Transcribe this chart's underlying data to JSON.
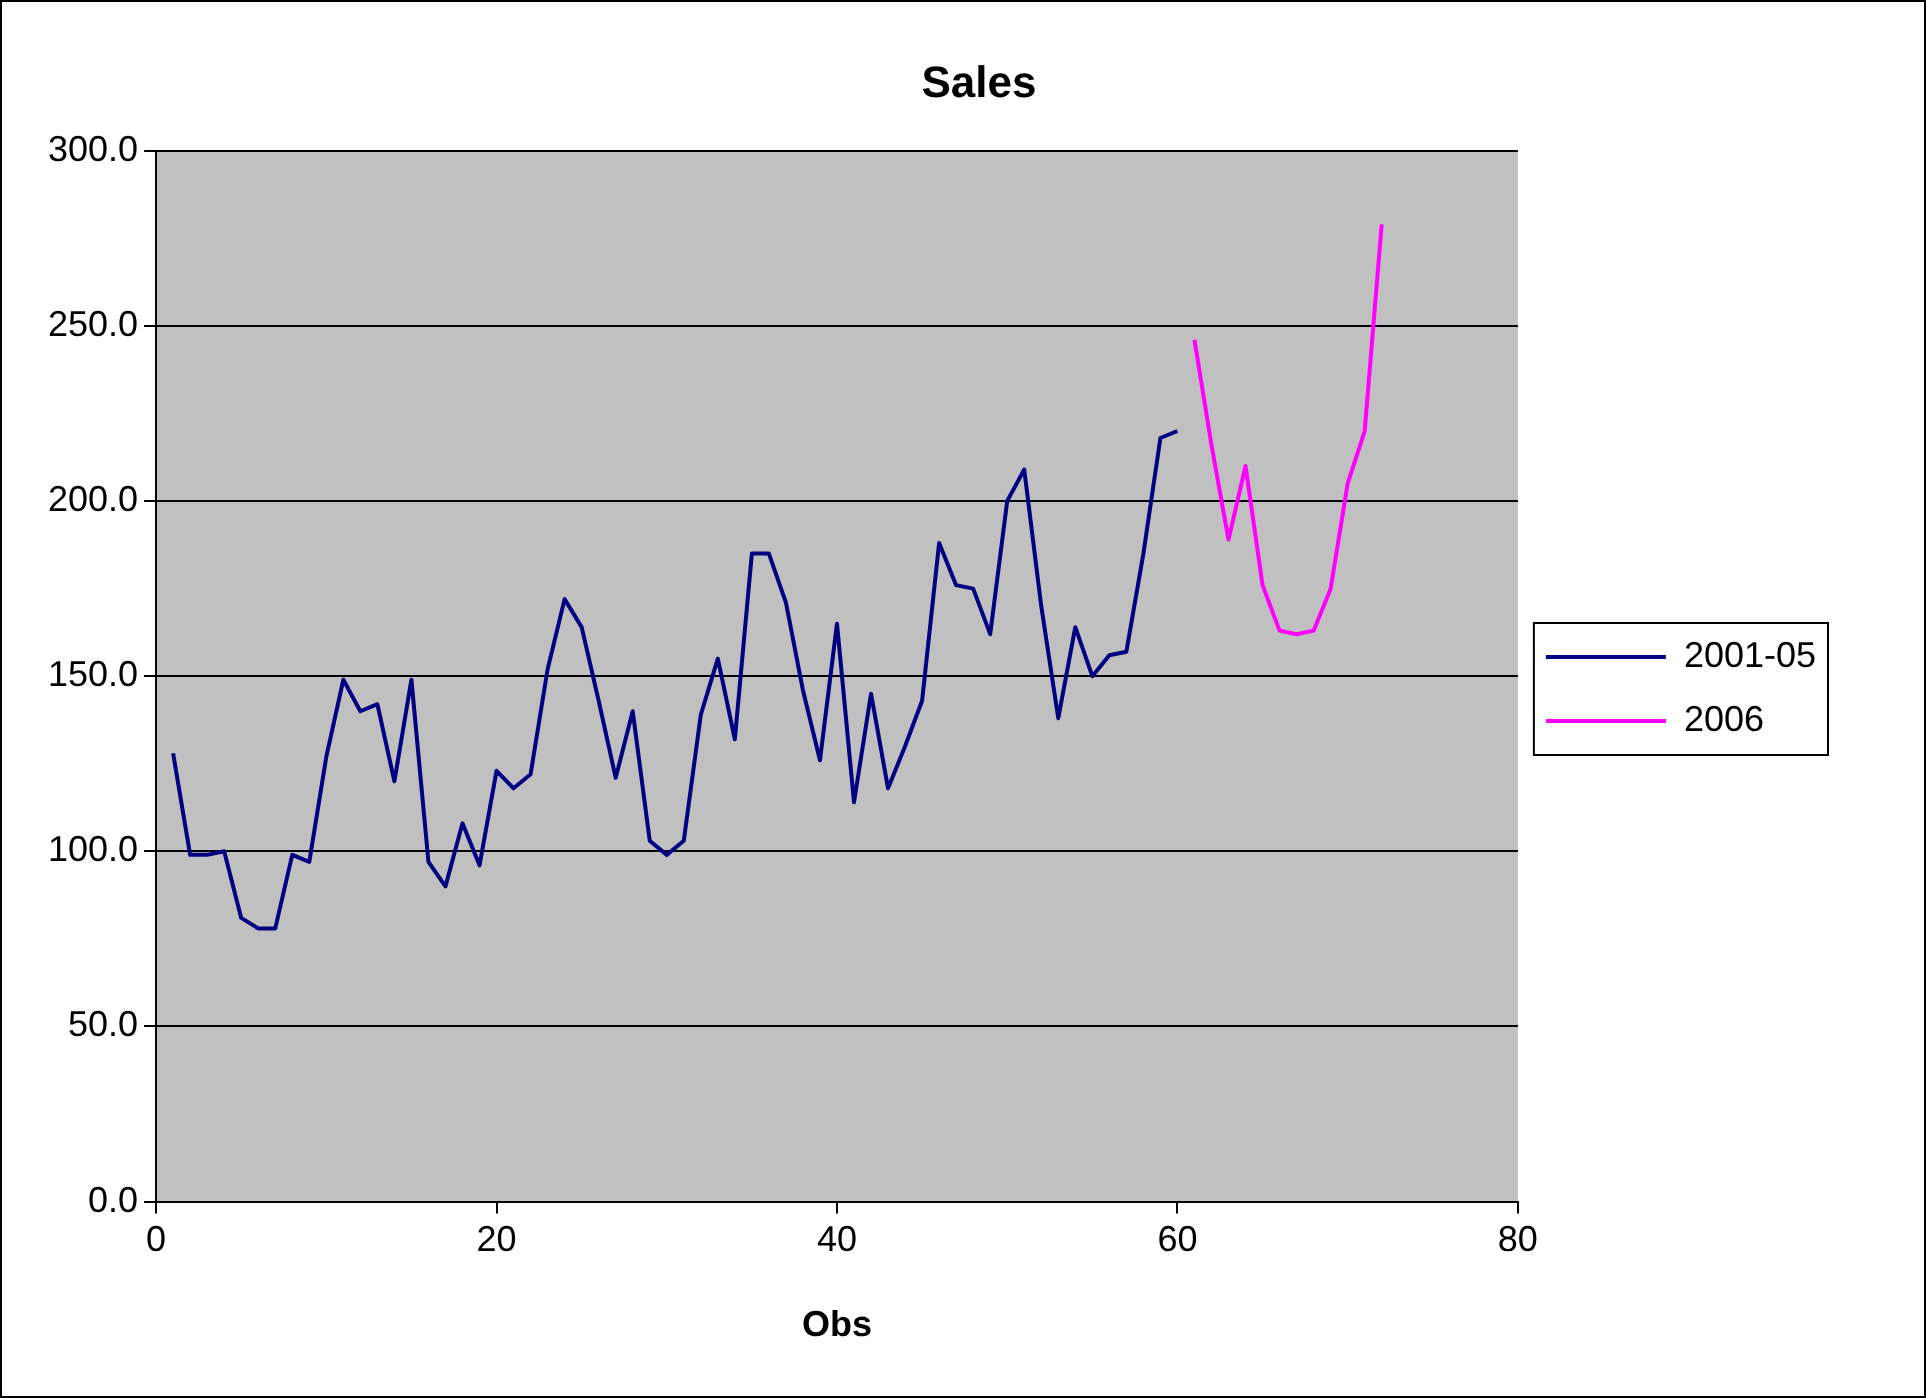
{
  "chart_data": {
    "type": "line",
    "title": "Sales",
    "xlabel": "Obs",
    "series": [
      {
        "name": "2001-05",
        "color": "#000080",
        "x": [
          1,
          2,
          3,
          4,
          5,
          6,
          7,
          8,
          9,
          10,
          11,
          12,
          13,
          14,
          15,
          16,
          17,
          18,
          19,
          20,
          21,
          22,
          23,
          24,
          25,
          26,
          27,
          28,
          29,
          30,
          31,
          32,
          33,
          34,
          35,
          36,
          37,
          38,
          39,
          40,
          41,
          42,
          43,
          44,
          45,
          46,
          47,
          48,
          49,
          50,
          51,
          52,
          53,
          54,
          55,
          56,
          57,
          58,
          59,
          60
        ],
        "values": [
          128,
          99,
          99,
          100,
          81,
          78,
          78,
          99,
          97,
          127,
          149,
          140,
          142,
          120,
          149,
          97,
          90,
          108,
          96,
          123,
          118,
          122,
          152,
          172,
          164,
          143,
          121,
          140,
          103,
          99,
          103,
          139,
          155,
          132,
          185,
          185,
          171,
          146,
          126,
          165,
          114,
          145,
          118,
          130,
          143,
          188,
          176,
          175,
          162,
          200,
          209,
          170,
          138,
          164,
          150,
          156,
          157,
          185,
          218,
          220
        ]
      },
      {
        "name": "2006",
        "color": "#ff00ff",
        "x": [
          61,
          62,
          63,
          64,
          65,
          66,
          67,
          68,
          69,
          70,
          71,
          72
        ],
        "values": [
          246,
          216,
          189,
          210,
          176,
          163,
          162,
          163,
          175,
          205,
          220,
          279
        ]
      }
    ],
    "xlim": [
      0,
      80
    ],
    "xticks": [
      0,
      20,
      40,
      60,
      80
    ],
    "ylim": [
      0,
      300
    ],
    "yticks": [
      {
        "value": 0,
        "label": "0.0"
      },
      {
        "value": 50,
        "label": "50.0"
      },
      {
        "value": 100,
        "label": "100.0"
      },
      {
        "value": 150,
        "label": "150.0"
      },
      {
        "value": 200,
        "label": "200.0"
      },
      {
        "value": 250,
        "label": "250.0"
      },
      {
        "value": 300,
        "label": "300.0"
      }
    ],
    "grid": "y",
    "legend": "right",
    "marker": "none",
    "line_style": "solid"
  }
}
